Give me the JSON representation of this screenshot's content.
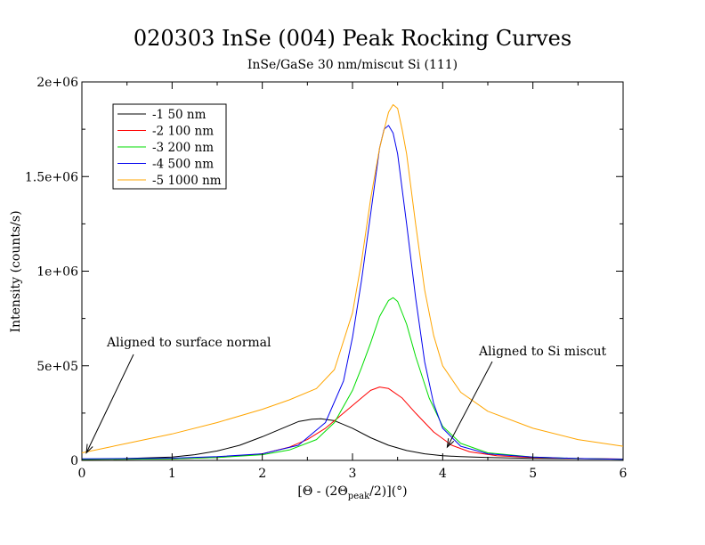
{
  "chart_data": {
    "type": "line",
    "title": "020303 InSe (004) Peak Rocking Curves",
    "subtitle": "InSe/GaSe 30 nm/miscut Si (111)",
    "xlabel": {
      "prefix": "[",
      "theta1": "Θ",
      "mid": " - (2",
      "theta2": "Θ",
      "sub": "peak",
      "suffix": "/2)](°)"
    },
    "ylabel": "Intensity (counts/s)",
    "xlim": [
      0,
      6
    ],
    "ylim": [
      0,
      2000000
    ],
    "x_ticks": [
      0,
      1,
      2,
      3,
      4,
      5,
      6
    ],
    "x_tick_labels": [
      "0",
      "1",
      "2",
      "3",
      "4",
      "5",
      "6"
    ],
    "y_ticks": [
      0,
      500000,
      1000000,
      1500000,
      2000000
    ],
    "y_tick_labels": [
      "0",
      "5e+05",
      "1e+06",
      "1.5e+06",
      "2e+06"
    ],
    "grid": false,
    "legend_position": "top-left",
    "series": [
      {
        "name": "-1 50 nm",
        "color": "#000000",
        "x": [
          0,
          0.5,
          1,
          1.25,
          1.5,
          1.75,
          2,
          2.2,
          2.4,
          2.55,
          2.65,
          2.8,
          3.0,
          3.2,
          3.4,
          3.6,
          3.8,
          4.0,
          4.2,
          4.5,
          5.0,
          5.5,
          6.0
        ],
        "y": [
          5000,
          10000,
          18000,
          30000,
          50000,
          80000,
          125000,
          165000,
          205000,
          218000,
          220000,
          210000,
          170000,
          120000,
          80000,
          52000,
          35000,
          25000,
          20000,
          15000,
          11000,
          9000,
          7000
        ]
      },
      {
        "name": "-2 100 nm",
        "color": "#ff0000",
        "x": [
          0,
          1,
          1.5,
          2.0,
          2.3,
          2.5,
          2.7,
          2.9,
          3.1,
          3.2,
          3.3,
          3.4,
          3.55,
          3.7,
          3.9,
          4.1,
          4.3,
          4.6,
          5.0,
          5.5,
          6.0
        ],
        "y": [
          5000,
          8000,
          15000,
          35000,
          70000,
          110000,
          170000,
          250000,
          330000,
          370000,
          388000,
          380000,
          330000,
          250000,
          150000,
          80000,
          45000,
          25000,
          15000,
          10000,
          7000
        ]
      },
      {
        "name": "-3 200 nm",
        "color": "#00dd00",
        "x": [
          0,
          1,
          1.5,
          2.0,
          2.3,
          2.6,
          2.8,
          3.0,
          3.1,
          3.2,
          3.3,
          3.4,
          3.45,
          3.5,
          3.6,
          3.7,
          3.85,
          4.0,
          4.2,
          4.5,
          5.0,
          5.5,
          6.0
        ],
        "y": [
          5000,
          8000,
          15000,
          30000,
          55000,
          110000,
          200000,
          370000,
          490000,
          620000,
          760000,
          845000,
          860000,
          840000,
          720000,
          550000,
          330000,
          180000,
          90000,
          40000,
          18000,
          10000,
          6000
        ]
      },
      {
        "name": "-4 500 nm",
        "color": "#0000ee",
        "x": [
          0,
          1,
          1.5,
          2.0,
          2.4,
          2.7,
          2.9,
          3.0,
          3.1,
          3.2,
          3.3,
          3.35,
          3.4,
          3.45,
          3.5,
          3.6,
          3.7,
          3.8,
          3.9,
          4.0,
          4.2,
          4.5,
          5.0,
          5.5,
          6.0
        ],
        "y": [
          8000,
          12000,
          20000,
          35000,
          80000,
          200000,
          420000,
          650000,
          950000,
          1300000,
          1650000,
          1750000,
          1770000,
          1730000,
          1620000,
          1250000,
          860000,
          520000,
          300000,
          170000,
          75000,
          35000,
          18000,
          10000,
          6000
        ]
      },
      {
        "name": "-5 1000 nm",
        "color": "#ffa500",
        "x": [
          0,
          0.25,
          0.5,
          1.0,
          1.5,
          2.0,
          2.3,
          2.6,
          2.8,
          3.0,
          3.1,
          3.2,
          3.3,
          3.4,
          3.45,
          3.5,
          3.55,
          3.6,
          3.7,
          3.8,
          3.9,
          4.0,
          4.2,
          4.5,
          5.0,
          5.5,
          6.0
        ],
        "y": [
          40000,
          65000,
          90000,
          140000,
          200000,
          270000,
          320000,
          380000,
          480000,
          780000,
          1050000,
          1380000,
          1650000,
          1840000,
          1880000,
          1860000,
          1750000,
          1620000,
          1250000,
          900000,
          660000,
          500000,
          360000,
          260000,
          170000,
          110000,
          75000
        ]
      }
    ],
    "annotations": [
      {
        "text": "Aligned to surface normal",
        "arrow_to": [
          0.05,
          40000
        ]
      },
      {
        "text": "Aligned to Si miscut",
        "arrow_to": [
          4.05,
          70000
        ]
      }
    ]
  }
}
